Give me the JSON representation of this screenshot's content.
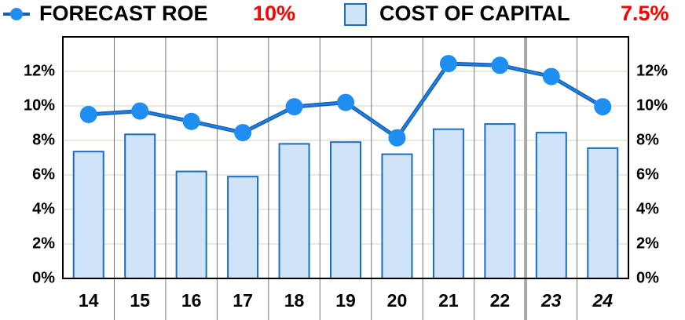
{
  "chart_data": {
    "type": "bar-line",
    "categories": [
      "14",
      "15",
      "16",
      "17",
      "18",
      "19",
      "20",
      "21",
      "22",
      "23",
      "24"
    ],
    "series": [
      {
        "name": "FORECAST ROE",
        "type": "line",
        "color": "#1a86ea",
        "highlight": {
          "value": 10,
          "label": "10%"
        },
        "values": [
          9.5,
          9.7,
          9.1,
          8.45,
          9.95,
          10.2,
          8.15,
          12.45,
          12.35,
          11.7,
          9.95
        ]
      },
      {
        "name": "COST OF CAPITAL",
        "type": "bar",
        "color": "#cfe4f8",
        "highlight": {
          "value": 7.5,
          "label": "7.5%"
        },
        "values": [
          7.35,
          8.35,
          6.2,
          5.9,
          7.8,
          7.9,
          7.2,
          8.65,
          8.95,
          8.45,
          7.55
        ]
      }
    ],
    "ylim": [
      0,
      14
    ],
    "yticks": [
      {
        "value": 0,
        "label": "0%"
      },
      {
        "value": 2,
        "label": "2%"
      },
      {
        "value": 4,
        "label": "4%"
      },
      {
        "value": 6,
        "label": "6%"
      },
      {
        "value": 8,
        "label": "8%"
      },
      {
        "value": 10,
        "label": "10%"
      },
      {
        "value": 12,
        "label": "12%"
      }
    ],
    "y2lim": [
      0,
      14
    ],
    "y2ticks": [
      {
        "value": 0,
        "label": "0%"
      },
      {
        "value": 2,
        "label": "2%"
      },
      {
        "value": 4,
        "label": "4%"
      },
      {
        "value": 6,
        "label": "6%"
      },
      {
        "value": 8,
        "label": "8%"
      },
      {
        "value": 10,
        "label": "10%"
      },
      {
        "value": 12,
        "label": "12%"
      }
    ],
    "grid": true
  }
}
